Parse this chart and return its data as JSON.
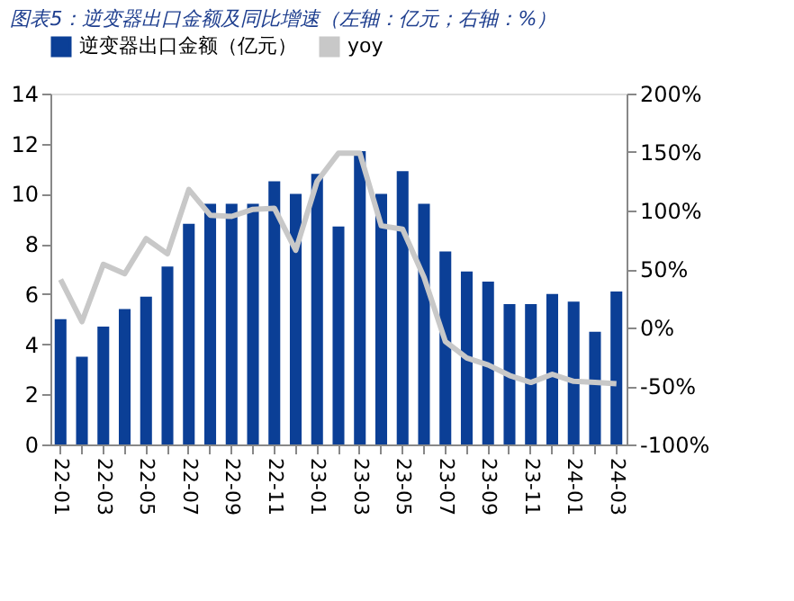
{
  "chart_data": {
    "type": "bar",
    "title": "图表5：逆变器出口金额及同比增速（左轴：亿元；右轴：%）",
    "categories": [
      "22-01",
      null,
      "22-03",
      null,
      "22-05",
      null,
      "22-07",
      null,
      "22-09",
      null,
      "22-11",
      null,
      "23-01",
      null,
      "23-03",
      null,
      "23-05",
      null,
      "23-07",
      null,
      "23-09",
      null,
      "23-11",
      null,
      "24-01",
      null,
      "24-03"
    ],
    "series": [
      {
        "name": "逆变器出口金额（亿元）",
        "color": "#0b3f96",
        "values": [
          5.0,
          3.5,
          4.7,
          5.4,
          5.9,
          7.1,
          8.8,
          9.6,
          9.6,
          9.6,
          10.5,
          10.0,
          10.8,
          8.7,
          11.7,
          10.0,
          10.9,
          9.6,
          7.7,
          6.9,
          6.5,
          5.6,
          5.6,
          6.0,
          5.7,
          4.5,
          6.1
        ]
      },
      {
        "name": "yoy",
        "type": "line",
        "axis": "y2",
        "color": "#c8c8c8",
        "values": [
          41,
          5,
          54,
          46,
          76,
          63,
          118,
          96,
          95,
          101,
          102,
          66,
          125,
          149,
          149,
          87,
          84,
          43,
          -12,
          -26,
          -32,
          -41,
          -47,
          -40,
          -46,
          -47,
          -48
        ]
      }
    ],
    "ylim": [
      0,
      14
    ],
    "yticks": [
      0,
      2,
      4,
      6,
      8,
      10,
      12,
      14
    ],
    "y2lim": [
      -100,
      200
    ],
    "y2ticks": [
      {
        "value": -100,
        "label": "-100%"
      },
      {
        "value": -50,
        "label": "-50%"
      },
      {
        "value": 0,
        "label": "0%"
      },
      {
        "value": 50,
        "label": "50%"
      },
      {
        "value": 100,
        "label": "100%"
      },
      {
        "value": 150,
        "label": "150%"
      },
      {
        "value": 200,
        "label": "200%"
      }
    ],
    "grid": false,
    "legend": "top",
    "marker": "none",
    "line_style": "solid"
  }
}
